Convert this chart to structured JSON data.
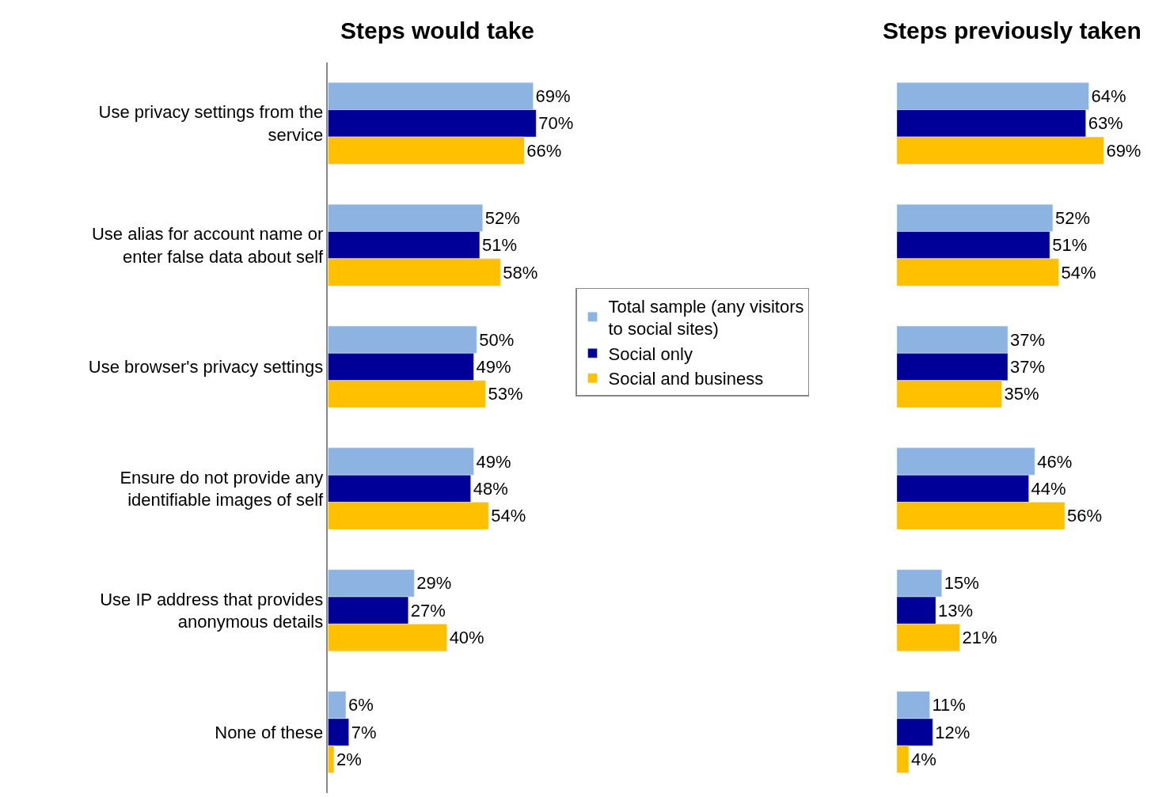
{
  "chart_data": [
    {
      "type": "bar",
      "orientation": "horizontal",
      "title": "Steps would take",
      "legend": "right",
      "categories": [
        "Use privacy settings from the service",
        "Use alias for account name or enter false data about self",
        "Use browser's privacy settings",
        "Ensure do not provide any identifiable images of self",
        "Use IP address that provides anonymous details",
        "None of these"
      ],
      "series": [
        {
          "name": "Total sample (any visitors to social sites)",
          "color": "#8db3e2",
          "values": [
            69,
            52,
            50,
            49,
            29,
            6
          ],
          "value_labels": [
            "69%",
            "52%",
            "50%",
            "49%",
            "29%",
            "6%"
          ]
        },
        {
          "name": "Social only",
          "color": "#000099",
          "values": [
            70,
            51,
            49,
            48,
            27,
            7
          ],
          "value_labels": [
            "70%",
            "51%",
            "49%",
            "48%",
            "27%",
            "7%"
          ]
        },
        {
          "name": "Social and business",
          "color": "#ffc000",
          "values": [
            66,
            58,
            53,
            54,
            40,
            2
          ],
          "value_labels": [
            "66%",
            "58%",
            "53%",
            "54%",
            "40%",
            "2%"
          ]
        }
      ]
    },
    {
      "type": "bar",
      "orientation": "horizontal",
      "title": "Steps previously taken",
      "tick_labels": false,
      "categories": [
        null,
        null,
        null,
        null,
        null,
        null
      ],
      "series": [
        {
          "color": "#8db3e2",
          "values": [
            64,
            52,
            37,
            46,
            15,
            11
          ],
          "value_labels": [
            "64%",
            "52%",
            "37%",
            "46%",
            "15%",
            "11%"
          ]
        },
        {
          "color": "#000099",
          "values": [
            63,
            51,
            37,
            44,
            13,
            12
          ],
          "value_labels": [
            "63%",
            "51%",
            "37%",
            "44%",
            "13%",
            "12%"
          ]
        },
        {
          "color": "#ffc000",
          "values": [
            69,
            54,
            35,
            56,
            21,
            4
          ],
          "value_labels": [
            "69%",
            "54%",
            "35%",
            "56%",
            "21%",
            "4%"
          ]
        }
      ]
    }
  ]
}
